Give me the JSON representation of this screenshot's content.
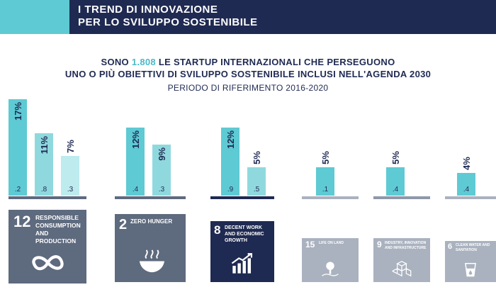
{
  "header": {
    "line1": "I TREND DI INNOVAZIONE",
    "line2": "PER LO SVILUPPO SOSTENIBILE"
  },
  "subtitle": {
    "line1_pre": "SONO ",
    "line1_highlight": "1.808",
    "line1_post": " LE STARTUP INTERNAZIONALI CHE PERSEGUONO",
    "line2": "UNO O PIÙ OBIETTIVI DI SVILUPPO SOSTENIBILE INCLUSI NELL'AGENDA 2030",
    "period": "PERIODO DI RIFERIMENTO 2016-2020"
  },
  "colors": {
    "navy": "#1f2a52",
    "teal": "#5ecad3",
    "teal_light": "#8fd9de",
    "teal_pale": "#bdebee",
    "gray_dark": "#5e6a7e",
    "gray_mid": "#8e98a8",
    "gray_light": "#aab2bf"
  },
  "chart_data": {
    "type": "bar",
    "title": "SONO 1.808 LE STARTUP INTERNAZIONALI CHE PERSEGUONO UNO O PIÙ OBIETTIVI DI SVILUPPO SOSTENIBILE INCLUSI NELL'AGENDA 2030",
    "subtitle": "PERIODO DI RIFERIMENTO 2016-2020",
    "groups": [
      {
        "goal_number": "12",
        "goal_label": "RESPONSIBLE CONSUMPTION AND PRODUCTION",
        "icon": "infinity-icon",
        "tile_color": "#5e6a7e",
        "bars": [
          {
            "percent": 17,
            "label": "17%",
            "base_label": ".2"
          },
          {
            "percent": 11,
            "label": "11%",
            "base_label": ".8"
          },
          {
            "percent": 7,
            "label": "7%",
            "base_label": ".3"
          }
        ]
      },
      {
        "goal_number": "2",
        "goal_label": "ZERO HUNGER",
        "icon": "bowl-icon",
        "tile_color": "#5e6a7e",
        "bars": [
          {
            "percent": 12,
            "label": "12%",
            "base_label": ".4"
          },
          {
            "percent": 9,
            "label": "9%",
            "base_label": ".3"
          }
        ]
      },
      {
        "goal_number": "8",
        "goal_label": "DECENT WORK AND ECONOMIC GROWTH",
        "icon": "growth-chart-icon",
        "tile_color": "#1f2a52",
        "bars": [
          {
            "percent": 12,
            "label": "12%",
            "base_label": ".9"
          },
          {
            "percent": 5,
            "label": "5%",
            "base_label": ".5"
          }
        ]
      },
      {
        "goal_number": "15",
        "goal_label": "LIFE ON LAND",
        "icon": "tree-icon",
        "tile_color": "#aab2bf",
        "bars": [
          {
            "percent": 5,
            "label": "5%",
            "base_label": ".1"
          }
        ]
      },
      {
        "goal_number": "9",
        "goal_label": "INDUSTRY, INNOVATION AND INFRASTRUCTURE",
        "icon": "cubes-icon",
        "tile_color": "#aab2bf",
        "bars": [
          {
            "percent": 5,
            "label": "5%",
            "base_label": ".4"
          }
        ]
      },
      {
        "goal_number": "6",
        "goal_label": "CLEAN WATER AND SANITATION",
        "icon": "water-glass-icon",
        "tile_color": "#aab2bf",
        "bars": [
          {
            "percent": 4,
            "label": "4%",
            "base_label": ".4"
          }
        ]
      }
    ]
  }
}
